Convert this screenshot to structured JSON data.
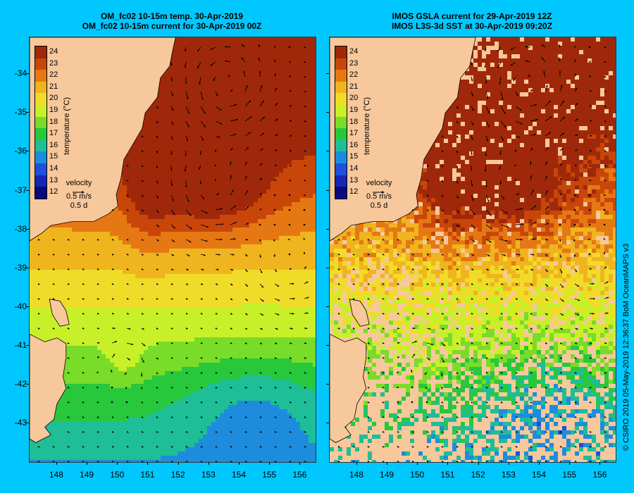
{
  "left_panel": {
    "title_line1": "OM_fc02 10-15m temp. 30-Apr-2019",
    "title_line2": "OM_fc02 10-15m current for 30-Apr-2019 00Z",
    "velocity_label": "velocity",
    "velocity_speed": "0.5 m/s",
    "velocity_time": "0.5 d"
  },
  "right_panel": {
    "title_line1": "IMOS GSLA current for 29-Apr-2019 12Z",
    "title_line2": "IMOS L3S-3d SST at 30-Apr-2019 09:20Z",
    "velocity_label": "velocity",
    "velocity_speed": "0.5 m/s",
    "velocity_time": "0.5 d"
  },
  "colorbar": {
    "title": "temperature (°C)",
    "labels": [
      "24",
      "23",
      "22",
      "21",
      "20",
      "19",
      "18",
      "17",
      "16",
      "15",
      "14",
      "13",
      "12"
    ],
    "colors": [
      "#a0280a",
      "#c8460a",
      "#e67814",
      "#f0b41e",
      "#f0dc28",
      "#c8f028",
      "#78dc28",
      "#28c83c",
      "#1ebe96",
      "#1e8cdc",
      "#1e50dc",
      "#1428b4",
      "#0a0a80"
    ]
  },
  "lat_labels": [
    "-34",
    "-35",
    "-36",
    "-37",
    "-38",
    "-39",
    "-40",
    "-41",
    "-42",
    "-43"
  ],
  "lon_labels": [
    "148",
    "149",
    "150",
    "151",
    "152",
    "153",
    "154",
    "155",
    "156"
  ],
  "credit": "© CSIRO 2019   05-May-2019 12:36:37 BoM OceanMAPS v3",
  "colors": {
    "background": "#00c8ff",
    "land": "#f7c89b",
    "arrow": "#000000"
  }
}
